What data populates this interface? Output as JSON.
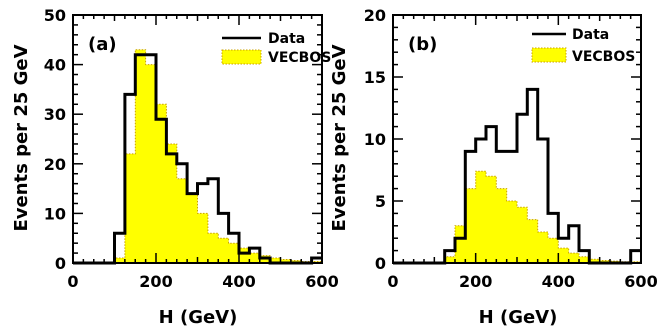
{
  "chart_data": [
    {
      "type": "histogram",
      "panel_label": "(a)",
      "xlabel": "H (GeV)",
      "ylabel": "Events per 25 GeV",
      "xlim": [
        0,
        600
      ],
      "ylim": [
        0,
        50
      ],
      "xticks": [
        0,
        200,
        400,
        600
      ],
      "yticks": [
        0,
        10,
        20,
        30,
        40,
        50
      ],
      "bin_width": 25,
      "bin_edges": [
        0,
        25,
        50,
        75,
        100,
        125,
        150,
        175,
        200,
        225,
        250,
        275,
        300,
        325,
        350,
        375,
        400,
        425,
        450,
        475,
        500,
        525,
        550,
        575,
        600
      ],
      "series": [
        {
          "name": "Data",
          "style": "step",
          "color": "#000000",
          "values": [
            0,
            0,
            0,
            0,
            6,
            34,
            42,
            42,
            29,
            22,
            20,
            14,
            16,
            17,
            10,
            6,
            2,
            3,
            1,
            0,
            0,
            0,
            0,
            1
          ]
        },
        {
          "name": "VECBOS",
          "style": "filled-step",
          "color": "#ffff00",
          "values": [
            0,
            0,
            0,
            0,
            1,
            22,
            43,
            40,
            32,
            24,
            17,
            14,
            10,
            6,
            5,
            4,
            3,
            2,
            1.5,
            1,
            0.7,
            0.5,
            0.3,
            0.3
          ]
        }
      ],
      "legend_position": "top-right"
    },
    {
      "type": "histogram",
      "panel_label": "(b)",
      "xlabel": "H (GeV)",
      "ylabel": "Events per 25 GeV",
      "xlim": [
        0,
        600
      ],
      "ylim": [
        0,
        20
      ],
      "xticks": [
        0,
        200,
        400,
        600
      ],
      "yticks": [
        0,
        5,
        10,
        15,
        20
      ],
      "bin_width": 25,
      "bin_edges": [
        0,
        25,
        50,
        75,
        100,
        125,
        150,
        175,
        200,
        225,
        250,
        275,
        300,
        325,
        350,
        375,
        400,
        425,
        450,
        475,
        500,
        525,
        550,
        575,
        600
      ],
      "series": [
        {
          "name": "Data",
          "style": "step",
          "color": "#000000",
          "values": [
            0,
            0,
            0,
            0,
            0,
            1,
            2,
            9,
            10,
            11,
            9,
            9,
            12,
            14,
            10,
            4,
            2,
            3,
            1,
            0,
            0,
            0,
            0,
            1
          ]
        },
        {
          "name": "VECBOS",
          "style": "filled-step",
          "color": "#ffff00",
          "values": [
            0,
            0,
            0,
            0,
            0,
            0.5,
            3,
            6,
            7.4,
            7,
            6,
            5,
            4.5,
            3.5,
            2.5,
            2,
            1.2,
            0.8,
            0.5,
            0.3,
            0.2,
            0.15,
            0.1,
            0.1
          ]
        }
      ],
      "legend_position": "top-right"
    }
  ]
}
